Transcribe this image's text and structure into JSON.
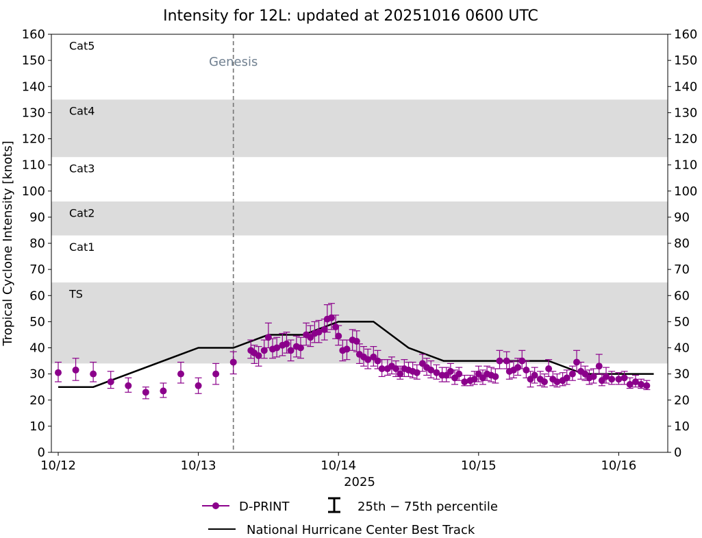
{
  "chart_data": {
    "type": "line",
    "title": "Intensity for 12L: updated at 20251016 0600 UTC",
    "xlabel": "2025",
    "ylabel": "Tropical Cyclone Intensity [knots]",
    "ylim": [
      0,
      160
    ],
    "xlim": [
      -0.05,
      4.35
    ],
    "x_unit": "days since 10/12 00 UTC",
    "xticks": [
      {
        "value": 0,
        "label": "10/12"
      },
      {
        "value": 1,
        "label": "10/13"
      },
      {
        "value": 2,
        "label": "10/14"
      },
      {
        "value": 3,
        "label": "10/15"
      },
      {
        "value": 4,
        "label": "10/16"
      }
    ],
    "yticks": [
      0,
      10,
      20,
      30,
      40,
      50,
      60,
      70,
      80,
      90,
      100,
      110,
      120,
      130,
      140,
      150,
      160
    ],
    "categories": [
      {
        "label": "Cat5",
        "range": [
          137,
          160
        ],
        "shaded": false
      },
      {
        "label": "Cat4",
        "range": [
          113,
          135
        ],
        "shaded": true
      },
      {
        "label": "Cat3",
        "range": [
          96,
          113
        ],
        "shaded": false
      },
      {
        "label": "Cat2",
        "range": [
          83,
          96
        ],
        "shaded": true
      },
      {
        "label": "Cat1",
        "range": [
          64,
          83
        ],
        "shaded": false
      },
      {
        "label": "TS",
        "range": [
          34,
          65
        ],
        "shaded": true
      }
    ],
    "genesis": {
      "label": "Genesis",
      "x": 1.25
    },
    "series": [
      {
        "name": "National Hurricane Center Best Track",
        "color": "#000000",
        "points": [
          [
            0,
            25
          ],
          [
            0.25,
            25
          ],
          [
            1.0,
            40
          ],
          [
            1.25,
            40
          ],
          [
            1.5,
            45
          ],
          [
            1.75,
            45
          ],
          [
            2.0,
            50
          ],
          [
            2.25,
            50
          ],
          [
            2.5,
            40
          ],
          [
            2.75,
            35
          ],
          [
            3.5,
            35
          ],
          [
            3.75,
            30
          ],
          [
            4.25,
            30
          ]
        ]
      },
      {
        "name": "D-PRINT",
        "color": "#8B008B",
        "points": [
          [
            0.0,
            30.5,
            27,
            34.5
          ],
          [
            0.125,
            31.5,
            27.5,
            36
          ],
          [
            0.25,
            30,
            27,
            34.5
          ],
          [
            0.375,
            27,
            24.5,
            31
          ],
          [
            0.5,
            25.5,
            23,
            28.5
          ],
          [
            0.625,
            23,
            20.5,
            25
          ],
          [
            0.75,
            23.5,
            21,
            26.5
          ],
          [
            0.875,
            30,
            26.5,
            34.5
          ],
          [
            1.0,
            25.5,
            22.5,
            28.5
          ],
          [
            1.125,
            30,
            26,
            34
          ],
          [
            1.25,
            34.5,
            30,
            38.5
          ],
          [
            1.375,
            39,
            36,
            43
          ],
          [
            1.4,
            38,
            34,
            41
          ],
          [
            1.43,
            37,
            33,
            40.5
          ],
          [
            1.47,
            39,
            36,
            43
          ],
          [
            1.5,
            44,
            40,
            49.5
          ],
          [
            1.53,
            39.5,
            36,
            43.5
          ],
          [
            1.56,
            40,
            36.5,
            44
          ],
          [
            1.6,
            41,
            37,
            45.5
          ],
          [
            1.63,
            41.5,
            38,
            46
          ],
          [
            1.66,
            39,
            35,
            43
          ],
          [
            1.7,
            40.5,
            36.5,
            44.5
          ],
          [
            1.73,
            40,
            36,
            44
          ],
          [
            1.77,
            45,
            41,
            49.5
          ],
          [
            1.8,
            44,
            40.5,
            48.5
          ],
          [
            1.83,
            45.5,
            42,
            50
          ],
          [
            1.86,
            46,
            42,
            50.5
          ],
          [
            1.9,
            47,
            43,
            51
          ],
          [
            1.92,
            51,
            46,
            56.5
          ],
          [
            1.95,
            51.5,
            47,
            57
          ],
          [
            1.98,
            48,
            43.5,
            52.5
          ],
          [
            2.0,
            44.5,
            41,
            48.5
          ],
          [
            2.03,
            39,
            35,
            43
          ],
          [
            2.06,
            39.5,
            35.5,
            43
          ],
          [
            2.1,
            43,
            39,
            47
          ],
          [
            2.13,
            42.5,
            38.5,
            46.5
          ],
          [
            2.15,
            37.5,
            34,
            41.5
          ],
          [
            2.18,
            36.5,
            33,
            40.5
          ],
          [
            2.21,
            35.5,
            32,
            39.5
          ],
          [
            2.25,
            36.5,
            33,
            40.5
          ],
          [
            2.28,
            35,
            32,
            39
          ],
          [
            2.31,
            32,
            29,
            35.5
          ],
          [
            2.35,
            32,
            29.5,
            35.5
          ],
          [
            2.38,
            33,
            30,
            36.5
          ],
          [
            2.41,
            32,
            29,
            35
          ],
          [
            2.44,
            30,
            28,
            33
          ],
          [
            2.47,
            32,
            29,
            35.5
          ],
          [
            2.5,
            31.5,
            29,
            34.5
          ],
          [
            2.53,
            31,
            28.5,
            34.5
          ],
          [
            2.56,
            30.5,
            28,
            33.5
          ],
          [
            2.6,
            34,
            31,
            37.5
          ],
          [
            2.63,
            32.5,
            29.5,
            36
          ],
          [
            2.66,
            31.5,
            28.5,
            35
          ],
          [
            2.7,
            30.5,
            28,
            33.5
          ],
          [
            2.74,
            29.5,
            27,
            32.5
          ],
          [
            2.77,
            29.5,
            27,
            32.5
          ],
          [
            2.8,
            31,
            28.5,
            34
          ],
          [
            2.83,
            28.5,
            26,
            31.5
          ],
          [
            2.86,
            30,
            27.5,
            32.5
          ],
          [
            2.9,
            27,
            25.5,
            29.5
          ],
          [
            2.94,
            27.5,
            25.5,
            29.5
          ],
          [
            2.97,
            28,
            26,
            31
          ],
          [
            3.0,
            30,
            27,
            33
          ],
          [
            3.03,
            28.5,
            26,
            31.5
          ],
          [
            3.06,
            30,
            27.5,
            33
          ],
          [
            3.09,
            29.5,
            27,
            32.5
          ],
          [
            3.12,
            29,
            26.5,
            32
          ],
          [
            3.15,
            35,
            32,
            39
          ],
          [
            3.2,
            35,
            32,
            38.5
          ],
          [
            3.22,
            31,
            28,
            34.5
          ],
          [
            3.25,
            31.5,
            28.5,
            35
          ],
          [
            3.28,
            32.5,
            29.5,
            36
          ],
          [
            3.31,
            35,
            32,
            39
          ],
          [
            3.34,
            31.5,
            28.5,
            35
          ],
          [
            3.37,
            28,
            25,
            31
          ],
          [
            3.4,
            29.5,
            26.5,
            32.5
          ],
          [
            3.44,
            28,
            25.5,
            31
          ],
          [
            3.47,
            27,
            25,
            30
          ],
          [
            3.5,
            32,
            29,
            35.5
          ],
          [
            3.53,
            28,
            25.5,
            31
          ],
          [
            3.56,
            27,
            25,
            30
          ],
          [
            3.6,
            27.5,
            25.5,
            30.5
          ],
          [
            3.63,
            28.5,
            26,
            31.5
          ],
          [
            3.67,
            30,
            27.5,
            33
          ],
          [
            3.7,
            34.5,
            31,
            39
          ],
          [
            3.73,
            31,
            28,
            34.5
          ],
          [
            3.76,
            30,
            27.5,
            33
          ],
          [
            3.79,
            28.5,
            26,
            31.5
          ],
          [
            3.82,
            29,
            26.5,
            32
          ],
          [
            3.86,
            33,
            30,
            37.5
          ],
          [
            3.88,
            27.5,
            25.5,
            30
          ],
          [
            3.91,
            29,
            26.5,
            32.5
          ],
          [
            3.95,
            28,
            26,
            31
          ],
          [
            4.0,
            28,
            26,
            30.5
          ],
          [
            4.04,
            28.5,
            26,
            31
          ],
          [
            4.08,
            26,
            24.5,
            28.5
          ],
          [
            4.12,
            27,
            25,
            29.5
          ],
          [
            4.16,
            26,
            24.5,
            28
          ],
          [
            4.2,
            25.5,
            24,
            27.5
          ]
        ]
      }
    ],
    "legend": {
      "position": "bottom-center",
      "dprint_label": "D-PRINT",
      "percentile_label": "25th − 75th percentile",
      "best_track_label": "National Hurricane Center Best Track"
    }
  }
}
